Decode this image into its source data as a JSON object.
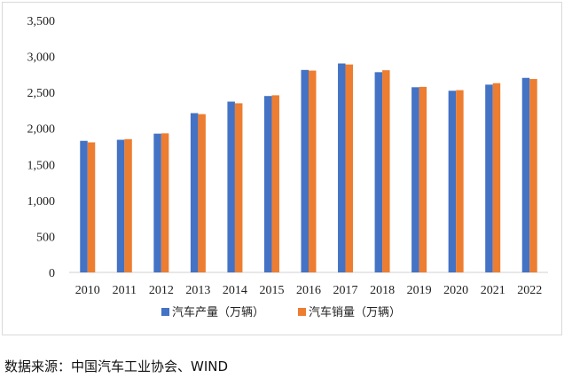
{
  "chart_data": {
    "type": "bar",
    "categories": [
      "2010",
      "2011",
      "2012",
      "2013",
      "2014",
      "2015",
      "2016",
      "2017",
      "2018",
      "2019",
      "2020",
      "2021",
      "2022"
    ],
    "series": [
      {
        "name": "汽车产量（万辆）",
        "color": "#4472C4",
        "values": [
          1827,
          1842,
          1927,
          2212,
          2372,
          2450,
          2812,
          2902,
          2781,
          2572,
          2523,
          2608,
          2702
        ]
      },
      {
        "name": "汽车销量（万辆）",
        "color": "#ED7D31",
        "values": [
          1806,
          1851,
          1931,
          2198,
          2349,
          2460,
          2803,
          2888,
          2808,
          2577,
          2531,
          2628,
          2686
        ]
      }
    ],
    "yticks": [
      "0",
      "500",
      "1,000",
      "1,500",
      "2,000",
      "2,500",
      "3,000",
      "3,500"
    ],
    "ylim": [
      0,
      3500
    ],
    "legend_position": "bottom",
    "grid": false
  },
  "source_note": "数据来源：中国汽车工业协会、WIND"
}
